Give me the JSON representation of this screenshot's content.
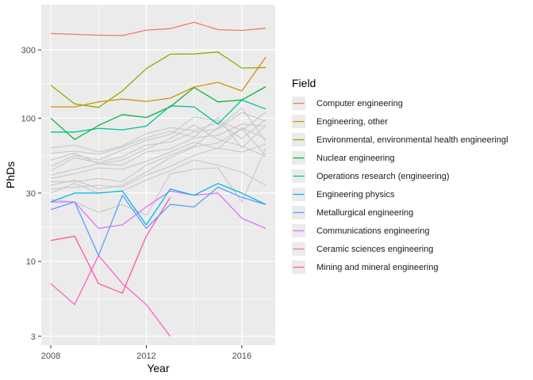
{
  "chart_data": {
    "type": "line",
    "xlabel": "Year",
    "ylabel": "PhDs",
    "x_scale": "linear",
    "y_scale": "log10",
    "xlim": [
      2007.6,
      2017.4
    ],
    "ylim": [
      2.6,
      620
    ],
    "x_ticks": [
      2008,
      2012,
      2016
    ],
    "x_tick_labels": [
      "2008",
      "2012",
      "2016"
    ],
    "y_ticks": [
      3,
      10,
      30,
      100,
      300
    ],
    "y_tick_labels": [
      "3",
      "10",
      "30",
      "100",
      "300"
    ],
    "grid": true,
    "background_color": "#ebebeb",
    "legend": {
      "title": "Field",
      "position": "right"
    },
    "x": [
      2008,
      2009,
      2010,
      2011,
      2012,
      2013,
      2014,
      2015,
      2016,
      2017
    ],
    "series": [
      {
        "name": "Computer engineering",
        "color": "#F8766D",
        "values": [
          390,
          385,
          380,
          378,
          412,
          422,
          468,
          415,
          410,
          425
        ]
      },
      {
        "name": "Engineering, other",
        "color": "#D39200",
        "values": [
          120,
          120,
          130,
          136,
          131,
          138,
          165,
          178,
          155,
          267
        ]
      },
      {
        "name": "Environmental, environmental health engineeringl",
        "color": "#93AA00",
        "values": [
          170,
          126,
          119,
          155,
          222,
          280,
          281,
          290,
          224,
          226
        ]
      },
      {
        "name": "Nuclear engineering",
        "color": "#00BA38",
        "values": [
          100,
          71,
          89,
          106,
          101,
          120,
          164,
          130,
          134,
          166
        ]
      },
      {
        "name": "Operations research (engineering)",
        "color": "#00C19F",
        "values": [
          80,
          80,
          85,
          83,
          88,
          122,
          120,
          91,
          134,
          116
        ]
      },
      {
        "name": "Engineering physics",
        "color": "#00B9E3",
        "values": [
          26,
          30,
          30,
          31,
          18,
          32,
          29,
          35,
          30,
          25
        ]
      },
      {
        "name": "Metallurgical engineering",
        "color": "#619CFF",
        "values": [
          23,
          26,
          11,
          29,
          17,
          25,
          24,
          33,
          28,
          25
        ]
      },
      {
        "name": "Communications engineering",
        "color": "#DB72FB",
        "values": [
          26,
          26,
          17,
          18,
          24,
          31,
          29,
          30,
          20,
          17
        ]
      },
      {
        "name": "Ceramic sciences engineering",
        "color": "#FF61C3",
        "values": [
          7,
          5,
          11,
          7,
          5,
          3,
          null,
          null,
          null,
          null
        ]
      },
      {
        "name": "Mining and mineral engineering",
        "color": "#FF56A6",
        "values": [
          14,
          15,
          7,
          6,
          15,
          28,
          null,
          null,
          null,
          null
        ]
      }
    ],
    "background_series_color": "#c8c8c8",
    "background_series": [
      [
        62,
        65,
        58,
        64,
        78,
        86,
        82,
        93,
        72,
        98
      ],
      [
        57,
        59,
        56,
        63,
        73,
        81,
        74,
        101,
        62,
        89
      ],
      [
        51,
        57,
        48,
        51,
        61,
        72,
        90,
        71,
        64,
        54
      ],
      [
        46,
        55,
        51,
        60,
        70,
        77,
        102,
        96,
        82,
        110
      ],
      [
        43,
        53,
        49,
        54,
        65,
        68,
        80,
        84,
        110,
        95
      ],
      [
        40,
        44,
        48,
        47,
        58,
        61,
        73,
        76,
        91,
        88
      ],
      [
        38,
        41,
        45,
        44,
        50,
        58,
        68,
        61,
        86,
        72
      ],
      [
        36,
        36,
        38,
        36,
        47,
        55,
        64,
        86,
        118,
        69
      ],
      [
        34,
        37,
        32,
        34,
        42,
        53,
        63,
        67,
        85,
        55
      ],
      [
        32,
        33,
        34,
        33,
        40,
        46,
        55,
        62,
        58,
        66
      ],
      [
        30,
        35,
        30,
        31,
        37,
        43,
        51,
        47,
        42,
        34
      ],
      [
        27,
        26,
        22,
        25,
        21,
        41,
        44,
        45,
        26,
        62
      ]
    ]
  }
}
